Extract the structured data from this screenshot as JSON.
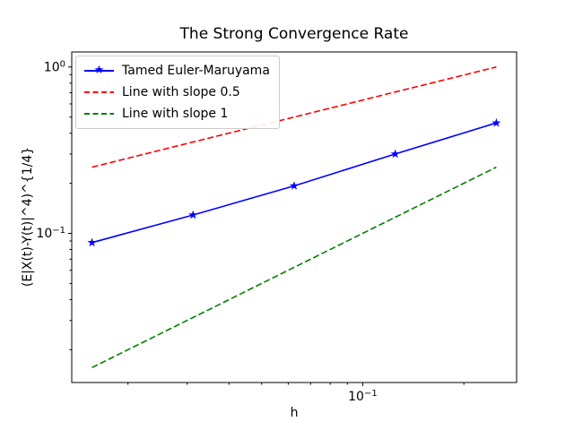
{
  "chart_data": {
    "type": "line",
    "title": "The Strong Convergence Rate",
    "xlabel": "h",
    "ylabel": "(E|X(t)-Y(t)|^4)^{1/4}",
    "xscale": "log",
    "yscale": "log",
    "grid": false,
    "xlim": [
      0.0136,
      0.2872
    ],
    "ylim": [
      0.0127,
      1.231
    ],
    "x": [
      0.015625,
      0.03125,
      0.0625,
      0.125,
      0.25
    ],
    "series": [
      {
        "name": "Tamed Euler-Maruyama",
        "color": "#0000ff",
        "linestyle": "solid",
        "marker": "star",
        "values": [
          0.088,
          0.129,
          0.193,
          0.3,
          0.461
        ]
      },
      {
        "name": "Line with slope 0.5",
        "color": "#ff0000",
        "linestyle": "dashed",
        "marker": null,
        "values": [
          0.25,
          0.354,
          0.5,
          0.707,
          1.0
        ]
      },
      {
        "name": "Line with slope 1",
        "color": "#008000",
        "linestyle": "dashed",
        "marker": null,
        "values": [
          0.015625,
          0.03125,
          0.0625,
          0.125,
          0.25
        ]
      }
    ],
    "x_tick_labels": [
      {
        "value": 0.1,
        "base": "10",
        "exp": "−1"
      }
    ],
    "y_tick_labels": [
      {
        "value": 1.0,
        "base": "10",
        "exp": "0"
      },
      {
        "value": 0.1,
        "base": "10",
        "exp": "−1"
      }
    ],
    "legend": {
      "position": "upper left"
    }
  }
}
